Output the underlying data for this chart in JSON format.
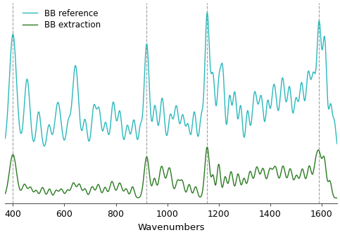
{
  "title": "",
  "xlabel": "Wavenumbers",
  "ylabel": "",
  "xlim": [
    370,
    1660
  ],
  "ref_color": "#2ab8bc",
  "ext_color": "#2a7a20",
  "dashed_lines": [
    400,
    920,
    1155,
    1590
  ],
  "legend_labels": [
    "BB reference",
    "BB extraction"
  ],
  "background_color": "#ffffff",
  "dpi": 100,
  "figsize": [
    4.83,
    3.34
  ]
}
